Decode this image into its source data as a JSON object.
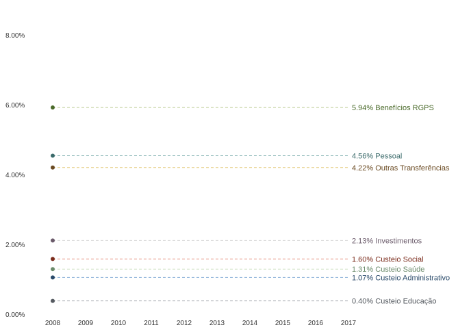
{
  "chart_data": {
    "type": "line",
    "x": [
      "2008",
      "2009",
      "2010",
      "2011",
      "2012",
      "2013",
      "2014",
      "2015",
      "2016",
      "2017"
    ],
    "y_ticks": [
      "0.00%",
      "2.00%",
      "4.00%",
      "6.00%",
      "8.00%"
    ],
    "ylim": [
      0,
      8
    ],
    "grid": false,
    "series": [
      {
        "name": "Benefícios RGPS",
        "label": "5.94% Benefícios RGPS",
        "value": 5.94,
        "color": "#4a6a2a",
        "line_color": "#b8c98f"
      },
      {
        "name": "Pessoal",
        "label": "4.56% Pessoal",
        "value": 4.56,
        "color": "#3a6a6a",
        "line_color": "#8ab6b6"
      },
      {
        "name": "Outras Transferências",
        "label": "4.22% Outras Transferências",
        "value": 4.22,
        "color": "#6a4a22",
        "line_color": "#e4c877"
      },
      {
        "name": "Investimentos",
        "label": "2.13% Investimentos",
        "value": 2.13,
        "color": "#6a5a6a",
        "line_color": "#d6d6d6"
      },
      {
        "name": "Custeio Social",
        "label": "1.60% Custeio Social",
        "value": 1.6,
        "color": "#7a2a1a",
        "line_color": "#e58f7e"
      },
      {
        "name": "Custeio Saúde",
        "label": "1.31% Custeio Saúde",
        "value": 1.31,
        "color": "#6a8a6a",
        "line_color": "#cfe0c4"
      },
      {
        "name": "Custeio Administrativo",
        "label": "1.07% Custeio Administrativo",
        "value": 1.07,
        "color": "#2a4a6a",
        "line_color": "#86aed6"
      },
      {
        "name": "Custeio Educação",
        "label": "0.40% Custeio Educação",
        "value": 0.4,
        "color": "#555a60",
        "line_color": "#a5a9ae"
      }
    ]
  }
}
